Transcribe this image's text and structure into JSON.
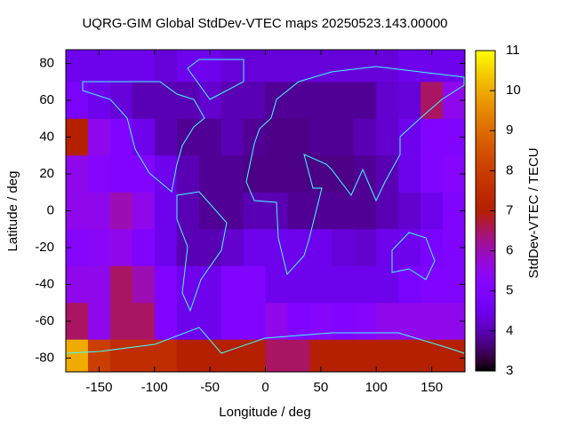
{
  "chart_data": {
    "type": "heatmap",
    "title": "UQRG-GIM Global StdDev-VTEC maps 20250523.143.00000",
    "x_label": "Longitude / deg",
    "y_label": "Latitude / deg",
    "colorbar_label": "StdDev-VTEC / TECU",
    "xlim": [
      -180,
      180
    ],
    "ylim": [
      -87.5,
      87.5
    ],
    "xticks": [
      -150,
      -100,
      -50,
      0,
      50,
      100,
      150
    ],
    "yticks": [
      -80,
      -60,
      -40,
      -20,
      0,
      20,
      40,
      60,
      80
    ],
    "clim": [
      3,
      11
    ],
    "cticks": [
      3,
      4,
      5,
      6,
      7,
      8,
      9,
      10,
      11
    ],
    "x": [
      -170,
      -150,
      -130,
      -110,
      -90,
      -70,
      -50,
      -30,
      -10,
      10,
      30,
      50,
      70,
      90,
      110,
      130,
      150,
      170
    ],
    "y": [
      80,
      60,
      40,
      20,
      0,
      -20,
      -40,
      -60,
      -80
    ],
    "z": [
      [
        4.5,
        4.5,
        4.5,
        4.5,
        4.3,
        4.5,
        4.5,
        4.3,
        4.3,
        4.3,
        4.3,
        4.3,
        4.3,
        4.3,
        4.3,
        4.5,
        4.5,
        4.5
      ],
      [
        4.8,
        4.5,
        4.3,
        4.0,
        4.0,
        4.0,
        4.2,
        4.0,
        4.0,
        3.8,
        3.8,
        3.8,
        3.8,
        3.8,
        4.2,
        4.3,
        6.5,
        5.5
      ],
      [
        7.0,
        5.5,
        5.0,
        4.5,
        4.0,
        3.8,
        3.8,
        4.0,
        3.8,
        3.7,
        3.7,
        3.8,
        3.8,
        4.0,
        4.2,
        4.5,
        5.0,
        5.0
      ],
      [
        5.5,
        5.2,
        5.0,
        5.0,
        4.5,
        4.0,
        3.8,
        3.8,
        3.7,
        3.7,
        3.7,
        3.7,
        3.7,
        3.8,
        4.0,
        4.5,
        5.0,
        5.2
      ],
      [
        5.5,
        5.5,
        6.0,
        5.5,
        4.5,
        4.0,
        3.8,
        3.8,
        4.0,
        4.0,
        3.8,
        3.8,
        3.8,
        3.8,
        4.0,
        4.2,
        4.5,
        5.0
      ],
      [
        5.2,
        5.3,
        5.5,
        5.0,
        4.5,
        4.0,
        4.0,
        4.2,
        4.5,
        4.5,
        4.5,
        4.5,
        4.3,
        4.2,
        4.5,
        4.5,
        4.8,
        5.0
      ],
      [
        5.5,
        5.5,
        6.5,
        6.0,
        5.0,
        4.5,
        4.5,
        5.0,
        5.0,
        4.5,
        4.5,
        4.5,
        4.5,
        4.5,
        4.5,
        4.8,
        5.0,
        5.0
      ],
      [
        6.5,
        5.5,
        6.5,
        6.5,
        5.0,
        4.5,
        4.5,
        5.0,
        5.0,
        5.5,
        5.0,
        5.2,
        5.0,
        5.2,
        5.5,
        5.5,
        5.5,
        5.5
      ],
      [
        10.0,
        8.0,
        7.5,
        7.5,
        7.5,
        7.0,
        7.0,
        7.0,
        7.0,
        6.5,
        6.5,
        7.0,
        7.0,
        7.0,
        7.0,
        7.0,
        7.0,
        7.0
      ]
    ]
  }
}
